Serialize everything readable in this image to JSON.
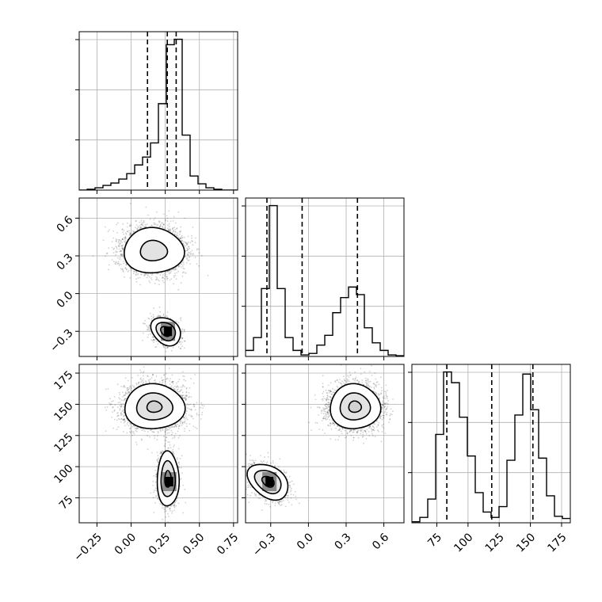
{
  "chart_data": {
    "type": "corner",
    "parameters": [
      {
        "ticks": [
          -0.25,
          0.0,
          0.25,
          0.5,
          0.75
        ],
        "tick_labels": [
          "−0.25",
          "0.00",
          "0.25",
          "0.50",
          "0.75"
        ],
        "range": [
          -0.38,
          0.78
        ]
      },
      {
        "ticks": [
          -0.3,
          0.0,
          0.3,
          0.6
        ],
        "tick_labels": [
          "−0.3",
          "0.0",
          "0.3",
          "0.6"
        ],
        "range": [
          -0.5,
          0.76
        ]
      },
      {
        "ticks": [
          75,
          100,
          125,
          150,
          175
        ],
        "tick_labels": [
          "75",
          "100",
          "125",
          "150",
          "175"
        ],
        "range": [
          55,
          182
        ]
      }
    ],
    "histograms": [
      {
        "param": 0,
        "bin_edges": [
          -0.38,
          -0.322,
          -0.264,
          -0.206,
          -0.148,
          -0.09,
          -0.032,
          0.026,
          0.084,
          0.142,
          0.2,
          0.258,
          0.316,
          0.374,
          0.432,
          0.49,
          0.548,
          0.606,
          0.664,
          0.722,
          0.78
        ],
        "counts": [
          0,
          1,
          3,
          6,
          9,
          14,
          21,
          32,
          42,
          60,
          110,
          185,
          192,
          70,
          18,
          8,
          3,
          1,
          0,
          0
        ],
        "quantiles": [
          0.12,
          0.265,
          0.33
        ]
      },
      {
        "param": 1,
        "bin_edges": [
          -0.5,
          -0.437,
          -0.374,
          -0.311,
          -0.248,
          -0.185,
          -0.122,
          -0.059,
          0.004,
          0.067,
          0.13,
          0.193,
          0.256,
          0.319,
          0.382,
          0.445,
          0.508,
          0.571,
          0.634,
          0.697,
          0.76
        ],
        "counts": [
          8,
          25,
          90,
          200,
          90,
          25,
          8,
          2,
          4,
          15,
          28,
          58,
          78,
          92,
          82,
          38,
          18,
          8,
          2,
          1
        ],
        "quantiles": [
          -0.33,
          -0.05,
          0.39
        ]
      },
      {
        "param": 2,
        "bin_edges": [
          55,
          61.35,
          67.7,
          74.05,
          80.4,
          86.75,
          93.1,
          99.45,
          105.8,
          112.15,
          118.5,
          124.85,
          131.2,
          137.55,
          143.9,
          150.25,
          156.6,
          162.95,
          169.3,
          175.65,
          182
        ],
        "counts": [
          1,
          5,
          22,
          82,
          140,
          130,
          98,
          62,
          28,
          10,
          5,
          15,
          58,
          100,
          138,
          105,
          60,
          25,
          6,
          4
        ],
        "quantiles": [
          83,
          119,
          152
        ]
      }
    ],
    "pairs": [
      {
        "x_param": 0,
        "y_param": 1,
        "modes": [
          {
            "center": [
              0.165,
              0.34
            ],
            "sigma": [
              0.11,
              0.09
            ],
            "n": 3500,
            "levels": [
              0.9,
              2.0
            ],
            "peak_block": null
          },
          {
            "center": [
              0.255,
              -0.3
            ],
            "sigma": [
              0.045,
              0.065
            ],
            "angle": -50,
            "n": 900,
            "levels": [
              0.7,
              1.3,
              2.0
            ],
            "peak_block": [
              0.27,
              -0.3
            ]
          }
        ]
      },
      {
        "x_param": 0,
        "y_param": 2,
        "modes": [
          {
            "center": [
              0.17,
              148
            ],
            "sigma": [
              0.11,
              9
            ],
            "n": 3500,
            "levels": [
              0.5,
              1.2,
              2.0
            ],
            "peak_block": null
          },
          {
            "center": [
              0.27,
              90
            ],
            "sigma": [
              0.04,
              11
            ],
            "n": 1100,
            "levels": [
              0.6,
              1.3,
              2.0
            ],
            "peak_block": [
              0.28,
              88
            ]
          }
        ]
      },
      {
        "x_param": 1,
        "y_param": 2,
        "modes": [
          {
            "center": [
              0.37,
              148
            ],
            "sigma": [
              0.1,
              9
            ],
            "n": 3200,
            "levels": [
              0.5,
              1.2,
              2.0
            ],
            "peak_block": null
          },
          {
            "center": [
              -0.32,
              88
            ],
            "sigma": [
              0.06,
              9
            ],
            "angle": -55,
            "n": 1200,
            "levels": [
              0.6,
              1.3,
              2.0
            ],
            "peak_block": [
              -0.31,
              88
            ]
          }
        ]
      }
    ],
    "grid": true,
    "colors": {
      "axes": "#000000",
      "grid": "#b0b0b0",
      "scatter": "#000000",
      "fill": "#000000"
    }
  }
}
